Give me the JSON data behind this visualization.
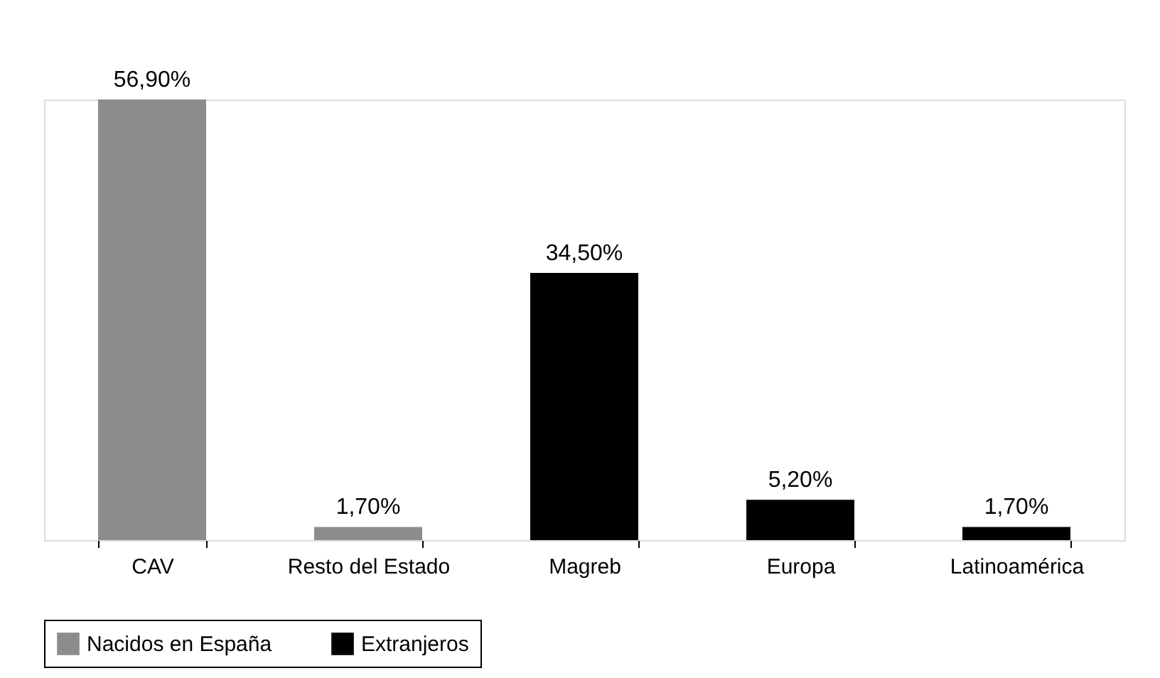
{
  "chart_data": {
    "type": "bar",
    "categories": [
      "CAV",
      "Resto del Estado",
      "Magreb",
      "Europa",
      "Latinoamérica"
    ],
    "series": [
      {
        "name": "Nacidos en España",
        "color": "#8c8c8c",
        "values": [
          56.9,
          1.7,
          null,
          null,
          null
        ],
        "value_labels": [
          "56,90%",
          "1,70%",
          null,
          null,
          null
        ]
      },
      {
        "name": "Extranjeros",
        "color": "#000000",
        "values": [
          null,
          null,
          34.5,
          5.2,
          1.7
        ],
        "value_labels": [
          null,
          null,
          "34,50%",
          "5,20%",
          "1,70%"
        ]
      }
    ],
    "legend": "bottom",
    "grid": false,
    "tick_labels": "x"
  }
}
